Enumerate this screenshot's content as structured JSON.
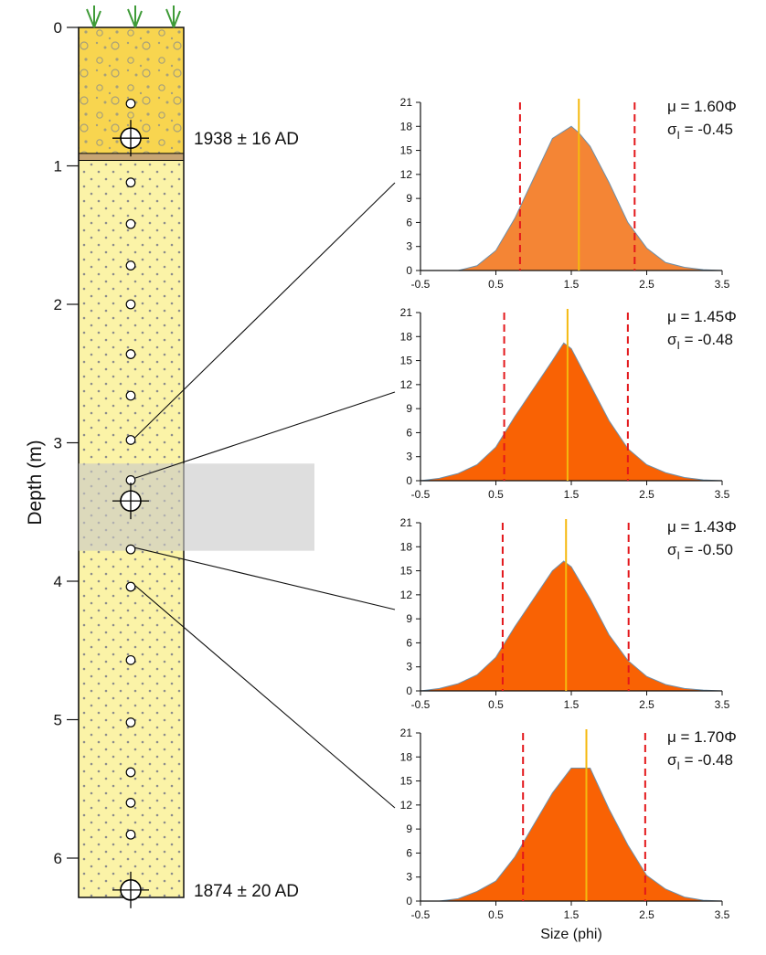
{
  "column": {
    "ylabel": "Depth (m)",
    "depth_ticks": [
      "0",
      "1",
      "2",
      "3",
      "4",
      "5",
      "6"
    ],
    "ages": [
      {
        "depth": 0.8,
        "label": "1938 ± 16 AD"
      },
      {
        "depth": 6.23,
        "label": "1874 ± 20 AD"
      }
    ],
    "sample_depths": [
      0.55,
      1.12,
      1.42,
      1.72,
      2.0,
      2.36,
      2.66,
      2.98,
      3.27,
      3.77,
      4.04,
      4.57,
      5.02,
      5.38,
      5.6,
      5.83
    ],
    "dated_depths": [
      0.8,
      3.42,
      6.23
    ],
    "highlight_range": [
      3.15,
      3.78
    ],
    "units": [
      {
        "name": "topsoil",
        "top": 0.0,
        "bottom": 0.91,
        "color": "#f8d54f"
      },
      {
        "name": "soil-boundary",
        "top": 0.91,
        "bottom": 0.96,
        "color": "#c7a574"
      },
      {
        "name": "sand",
        "top": 0.96,
        "bottom": 6.5,
        "color": "#fbf3a7"
      }
    ]
  },
  "chart_data": [
    {
      "type": "area",
      "xlabel": "",
      "x_ticks": [
        "-0.5",
        "0.5",
        "1.5",
        "2.5",
        "3.5"
      ],
      "y_ticks": [
        "0",
        "3",
        "6",
        "9",
        "12",
        "15",
        "18",
        "21"
      ],
      "xlim": [
        -0.5,
        3.5
      ],
      "ylim": [
        0,
        21
      ],
      "x": [
        -0.5,
        -0.25,
        0.0,
        0.25,
        0.5,
        0.75,
        1.0,
        1.25,
        1.5,
        1.6,
        1.75,
        2.0,
        2.25,
        2.5,
        2.75,
        3.0,
        3.25,
        3.5
      ],
      "values": [
        0,
        0,
        0,
        0.6,
        2.5,
        6.5,
        11.5,
        16.5,
        18.0,
        17.2,
        15.5,
        11.0,
        6.0,
        2.8,
        1.0,
        0.4,
        0.1,
        0
      ],
      "fill_color": "#f48535",
      "mean": 1.6,
      "bounds": [
        0.82,
        2.34
      ],
      "stats": {
        "mu": "μ = 1.60Φ",
        "sigma": "σ",
        "sigma_sub": "I",
        "sigma_val": " = -0.45"
      }
    },
    {
      "type": "area",
      "xlabel": "",
      "x_ticks": [
        "-0.5",
        "0.5",
        "1.5",
        "2.5",
        "3.5"
      ],
      "y_ticks": [
        "0",
        "3",
        "6",
        "9",
        "12",
        "15",
        "18",
        "21"
      ],
      "xlim": [
        -0.5,
        3.5
      ],
      "ylim": [
        0,
        21
      ],
      "x": [
        -0.5,
        -0.25,
        0.0,
        0.25,
        0.5,
        0.75,
        1.0,
        1.25,
        1.4,
        1.5,
        1.75,
        2.0,
        2.25,
        2.5,
        2.75,
        3.0,
        3.25,
        3.5
      ],
      "values": [
        0,
        0.3,
        0.9,
        2.0,
        4.2,
        8.0,
        11.5,
        15.0,
        17.2,
        16.5,
        12.0,
        7.5,
        4.0,
        2.0,
        1.0,
        0.4,
        0.1,
        0
      ],
      "fill_color": "#f96204",
      "mean": 1.45,
      "bounds": [
        0.61,
        2.25
      ],
      "stats": {
        "mu": "μ = 1.45Φ",
        "sigma": "σ",
        "sigma_sub": "I",
        "sigma_val": " = -0.48"
      }
    },
    {
      "type": "area",
      "xlabel": "",
      "x_ticks": [
        "-0.5",
        "0.5",
        "1.5",
        "2.5",
        "3.5"
      ],
      "y_ticks": [
        "0",
        "3",
        "6",
        "9",
        "12",
        "15",
        "18",
        "21"
      ],
      "xlim": [
        -0.5,
        3.5
      ],
      "ylim": [
        0,
        21
      ],
      "x": [
        -0.5,
        -0.25,
        0.0,
        0.25,
        0.5,
        0.75,
        1.0,
        1.25,
        1.4,
        1.5,
        1.75,
        2.0,
        2.25,
        2.5,
        2.75,
        3.0,
        3.25,
        3.5
      ],
      "values": [
        0,
        0.3,
        0.9,
        2.0,
        4.2,
        8.0,
        11.5,
        15.0,
        16.2,
        15.5,
        11.5,
        7.0,
        3.8,
        1.8,
        0.8,
        0.3,
        0.1,
        0
      ],
      "fill_color": "#f96204",
      "mean": 1.43,
      "bounds": [
        0.59,
        2.26
      ],
      "stats": {
        "mu": "μ = 1.43Φ",
        "sigma": "σ",
        "sigma_sub": "I",
        "sigma_val": " = -0.50"
      }
    },
    {
      "type": "area",
      "xlabel": "Size (phi)",
      "x_ticks": [
        "-0.5",
        "0.5",
        "1.5",
        "2.5",
        "3.5"
      ],
      "y_ticks": [
        "0",
        "3",
        "6",
        "9",
        "12",
        "15",
        "18",
        "21"
      ],
      "xlim": [
        -0.5,
        3.5
      ],
      "ylim": [
        0,
        21
      ],
      "x": [
        -0.5,
        -0.25,
        0.0,
        0.25,
        0.5,
        0.75,
        1.0,
        1.25,
        1.5,
        1.75,
        2.0,
        2.25,
        2.5,
        2.75,
        3.0,
        3.25,
        3.5
      ],
      "values": [
        0,
        0,
        0.3,
        1.2,
        2.5,
        5.5,
        9.5,
        13.5,
        16.6,
        16.6,
        11.5,
        7.0,
        3.2,
        1.5,
        0.5,
        0.1,
        0
      ],
      "fill_color": "#f96204",
      "mean": 1.7,
      "bounds": [
        0.86,
        2.48
      ],
      "stats": {
        "mu": "μ = 1.70Φ",
        "sigma": "σ",
        "sigma_sub": "I",
        "sigma_val": " = -0.48"
      }
    }
  ]
}
